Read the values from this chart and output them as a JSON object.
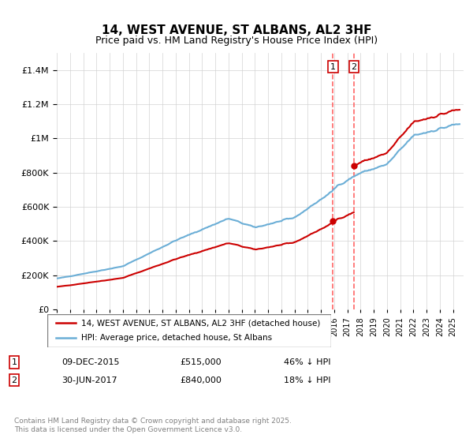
{
  "title": "14, WEST AVENUE, ST ALBANS, AL2 3HF",
  "subtitle": "Price paid vs. HM Land Registry's House Price Index (HPI)",
  "legend_line1": "14, WEST AVENUE, ST ALBANS, AL2 3HF (detached house)",
  "legend_line2": "HPI: Average price, detached house, St Albans",
  "footer": "Contains HM Land Registry data © Crown copyright and database right 2025.\nThis data is licensed under the Open Government Licence v3.0.",
  "sale1_label": "1",
  "sale1_date": "09-DEC-2015",
  "sale1_price": "£515,000",
  "sale1_hpi": "46% ↓ HPI",
  "sale2_label": "2",
  "sale2_date": "30-JUN-2017",
  "sale2_price": "£840,000",
  "sale2_hpi": "18% ↓ HPI",
  "hpi_color": "#6baed6",
  "price_color": "#cc0000",
  "vline_color": "#ff6666",
  "marker1_x": 2015.92,
  "marker2_x": 2017.5,
  "ylim": [
    0,
    1500000
  ],
  "xlim_start": 1995,
  "xlim_end": 2025.5
}
